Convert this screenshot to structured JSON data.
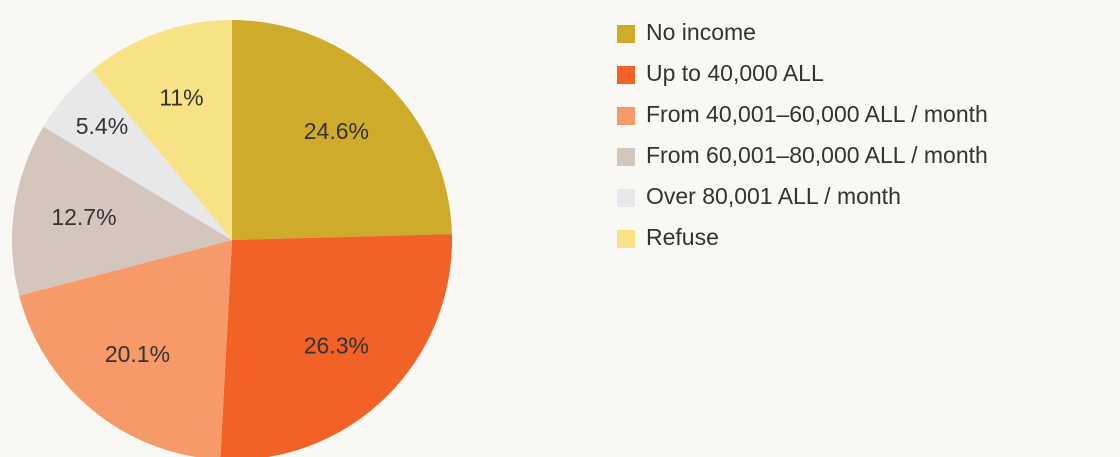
{
  "chart_data": {
    "type": "pie",
    "categories": [
      "No income",
      "Up to 40,000 ALL",
      "From 40,001–60,000 ALL / month",
      "From 60,001–80,000 ALL / month",
      "Over 80,001 ALL / month",
      "Refuse"
    ],
    "values": [
      24.6,
      26.3,
      20.1,
      12.7,
      5.4,
      11
    ],
    "value_labels": [
      "24.6%",
      "26.3%",
      "20.1%",
      "12.7%",
      "5.4%",
      "11%"
    ],
    "colors": [
      "#cfab2b",
      "#f26125",
      "#f79a6a",
      "#d4c6bc",
      "#e8e8ea",
      "#f7e285"
    ],
    "legend": "right"
  }
}
